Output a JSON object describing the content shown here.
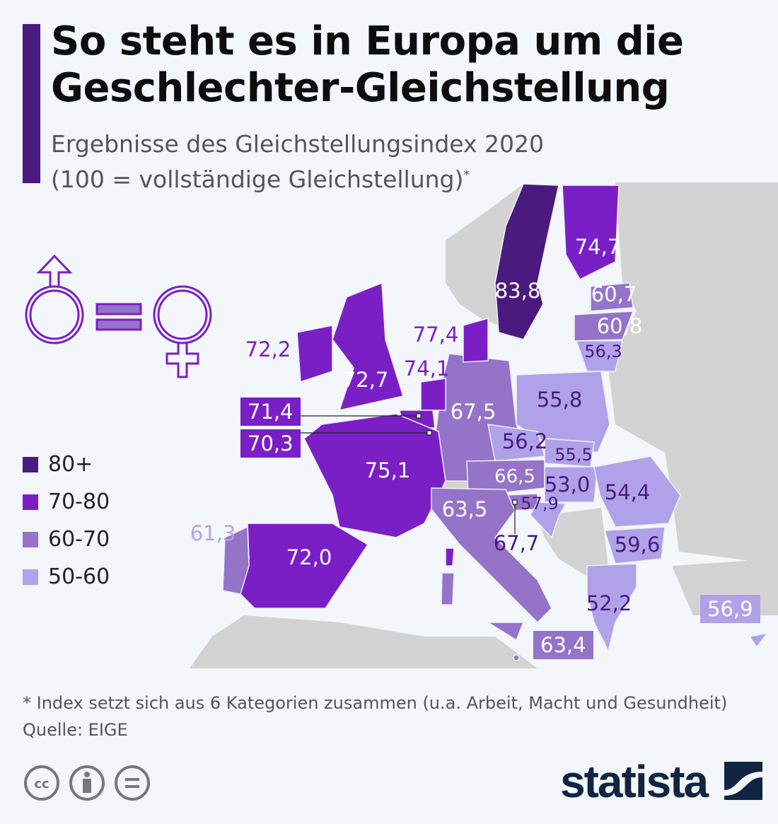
{
  "header": {
    "title_line1": "So steht es in Europa um die",
    "title_line2": "Geschlechter-Gleichstellung",
    "subtitle_line1": "Ergebnisse des Gleichstellungsindex 2020",
    "subtitle_line2": "(100 = vollständige Gleichstellung)",
    "subtitle_mark": "*"
  },
  "colors": {
    "c80": "#4a1a7e",
    "c70": "#7a1fc6",
    "c60": "#9473c9",
    "c50": "#afa2e8",
    "grey": "#d3d3d3",
    "bg": "#f3f6fa"
  },
  "legend": [
    {
      "label": "80+",
      "color": "#4a1a7e"
    },
    {
      "label": "70-80",
      "color": "#7a1fc6"
    },
    {
      "label": "60-70",
      "color": "#9473c9"
    },
    {
      "label": "50-60",
      "color": "#afa2e8"
    }
  ],
  "map_values": {
    "sweden": "83,8",
    "finland": "74,7",
    "estonia": "60,7",
    "latvia": "60,8",
    "lithuania": "56,3",
    "denmark": "77,4",
    "ireland": "72,2",
    "uk": "72,7",
    "netherlands": "74,1",
    "belgium": "71,4",
    "luxembourg": "70,3",
    "germany": "67,5",
    "poland": "55,8",
    "czechia": "56,2",
    "slovakia": "55,5",
    "france": "75,1",
    "austria": "66,5",
    "hungary": "53,0",
    "romania": "54,4",
    "italy": "63,5",
    "croatia": "57,9",
    "slovenia": "67,7",
    "portugal": "61,3",
    "spain": "72,0",
    "bulgaria": "59,6",
    "greece": "52,2",
    "cyprus": "56,9",
    "malta": "63,4"
  },
  "footer": {
    "note": "* Index setzt sich aus 6 Kategorien zusammen (u.a. Arbeit, Macht und Gesundheit)",
    "source": "Quelle: EIGE",
    "brand": "statista"
  }
}
